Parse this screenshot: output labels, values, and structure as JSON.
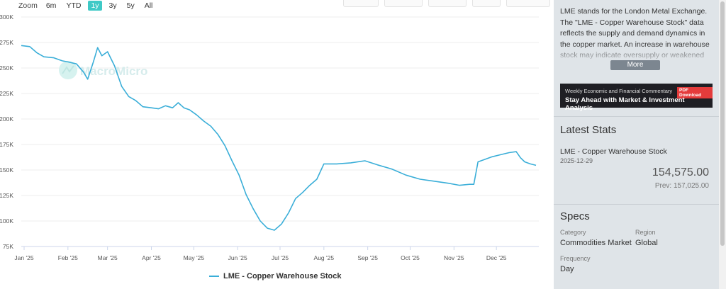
{
  "zoom": {
    "label": "Zoom",
    "options": [
      "6m",
      "YTD",
      "1y",
      "3y",
      "5y",
      "All"
    ],
    "active": "1y"
  },
  "watermark": "MacroMicro",
  "chart_data": {
    "type": "line",
    "x_ticks": [
      "Jan '25",
      "Feb '25",
      "Mar '25",
      "Apr '25",
      "May '25",
      "Jun '25",
      "Jul '25",
      "Aug '25",
      "Sep '25",
      "Oct '25",
      "Nov '25",
      "Dec '25"
    ],
    "y_ticks": [
      "300K",
      "275K",
      "250K",
      "225K",
      "200K",
      "175K",
      "150K",
      "125K",
      "100K",
      "75K"
    ],
    "ylim": [
      75000,
      300000
    ],
    "xlim": [
      "2024-12-30",
      "2025-12-31"
    ],
    "grid": true,
    "legend_position": "bottom",
    "series": [
      {
        "name": "LME - Copper Warehouse Stock",
        "color": "#3aaed8",
        "x": [
          "2024-12-30",
          "2025-01-05",
          "2025-01-10",
          "2025-01-15",
          "2025-01-22",
          "2025-01-28",
          "2025-02-01",
          "2025-02-07",
          "2025-02-12",
          "2025-02-15",
          "2025-02-19",
          "2025-02-22",
          "2025-02-25",
          "2025-03-01",
          "2025-03-06",
          "2025-03-11",
          "2025-03-16",
          "2025-03-21",
          "2025-03-26",
          "2025-04-01",
          "2025-04-06",
          "2025-04-11",
          "2025-04-16",
          "2025-04-20",
          "2025-04-24",
          "2025-04-28",
          "2025-05-03",
          "2025-05-08",
          "2025-05-13",
          "2025-05-18",
          "2025-05-23",
          "2025-05-28",
          "2025-06-02",
          "2025-06-07",
          "2025-06-12",
          "2025-06-17",
          "2025-06-22",
          "2025-06-27",
          "2025-07-02",
          "2025-07-07",
          "2025-07-12",
          "2025-07-17",
          "2025-07-22",
          "2025-07-27",
          "2025-08-01",
          "2025-08-04",
          "2025-08-10",
          "2025-08-20",
          "2025-08-30",
          "2025-09-08",
          "2025-09-18",
          "2025-09-28",
          "2025-10-08",
          "2025-10-18",
          "2025-10-28",
          "2025-11-05",
          "2025-11-12",
          "2025-11-15",
          "2025-11-18",
          "2025-11-22",
          "2025-11-28",
          "2025-12-04",
          "2025-12-10",
          "2025-12-15",
          "2025-12-18",
          "2025-12-21",
          "2025-12-25",
          "2025-12-29"
        ],
        "values": [
          272000,
          271000,
          265000,
          261000,
          260000,
          257000,
          256000,
          254000,
          246000,
          239000,
          256000,
          270000,
          262000,
          266000,
          252000,
          232000,
          222000,
          218000,
          212000,
          211000,
          210000,
          213000,
          211000,
          216000,
          211000,
          209000,
          204000,
          198000,
          193000,
          185000,
          174000,
          159000,
          145000,
          126000,
          112000,
          100000,
          93000,
          91000,
          97000,
          108000,
          122000,
          128000,
          135000,
          141000,
          156000,
          156000,
          156000,
          157000,
          159000,
          155000,
          151000,
          145000,
          141000,
          139000,
          137000,
          135000,
          136000,
          136000,
          158000,
          160000,
          163000,
          165000,
          167000,
          168000,
          162000,
          158000,
          156000,
          154575
        ]
      }
    ]
  },
  "side": {
    "description": "LME stands for the London Metal Exchange. The \"LME - Copper Warehouse Stock\" data reflects the supply and demand dynamics in the copper market. An increase in warehouse stock may indicate oversupply or weakened",
    "more_label": "More",
    "banner": {
      "line1": "Weekly Economic and Financial Commentary",
      "badge": "PDF Download",
      "line2": "Stay Ahead with Market & Investment Analysis"
    },
    "stats": {
      "title": "Latest Stats",
      "name": "LME - Copper Warehouse Stock",
      "date": "2025-12-29",
      "value": "154,575.00",
      "prev": "Prev: 157,025.00"
    },
    "specs": {
      "title": "Specs",
      "category_label": "Category",
      "category_value": "Commodities Market",
      "region_label": "Region",
      "region_value": "Global",
      "frequency_label": "Frequency",
      "frequency_value": "Day"
    }
  }
}
